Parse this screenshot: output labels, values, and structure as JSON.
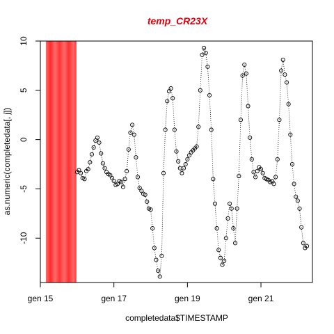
{
  "chart_data": {
    "type": "scatter",
    "title": "temp_CR23X",
    "xlabel": "completedata$TIMESTAMP",
    "ylabel": "as.numeric(completedata[, j])",
    "xlim": [
      15,
      22.4
    ],
    "ylim": [
      -14.5,
      10
    ],
    "x_ticks": [
      {
        "value": 15,
        "label": "gen 15"
      },
      {
        "value": 17,
        "label": "gen 17"
      },
      {
        "value": 19,
        "label": "gen 19"
      },
      {
        "value": 21,
        "label": "gen 21"
      }
    ],
    "y_ticks": [
      {
        "value": 10,
        "label": "10"
      },
      {
        "value": 5,
        "label": "5"
      },
      {
        "value": 0,
        "label": "0"
      },
      {
        "value": -5,
        "label": "-5"
      },
      {
        "value": -10,
        "label": "-10"
      }
    ],
    "highlight_band": {
      "x_from": 15.15,
      "x_to": 15.98,
      "color": "#ff3b3b"
    },
    "title_color": "#e0000a",
    "series": [
      {
        "marker": "open-circle",
        "connector": "dotted-line",
        "points": [
          [
            16.0,
            -3.3
          ],
          [
            16.05,
            -3.1
          ],
          [
            16.1,
            -3.4
          ],
          [
            16.15,
            -3.9
          ],
          [
            16.2,
            -4.0
          ],
          [
            16.25,
            -3.2
          ],
          [
            16.3,
            -3.0
          ],
          [
            16.35,
            -2.3
          ],
          [
            16.4,
            -1.5
          ],
          [
            16.45,
            -0.8
          ],
          [
            16.5,
            -0.1
          ],
          [
            16.55,
            0.2
          ],
          [
            16.6,
            -0.3
          ],
          [
            16.65,
            -1.4
          ],
          [
            16.7,
            -2.4
          ],
          [
            16.75,
            -2.9
          ],
          [
            16.8,
            -3.3
          ],
          [
            16.85,
            -3.5
          ],
          [
            16.9,
            -3.6
          ],
          [
            16.95,
            -3.9
          ],
          [
            17.0,
            -4.2
          ],
          [
            17.05,
            -4.6
          ],
          [
            17.1,
            -4.5
          ],
          [
            17.15,
            -4.2
          ],
          [
            17.2,
            -4.3
          ],
          [
            17.25,
            -4.8
          ],
          [
            17.3,
            -4.0
          ],
          [
            17.35,
            -3.2
          ],
          [
            17.4,
            -1.0
          ],
          [
            17.45,
            0.7
          ],
          [
            17.5,
            1.5
          ],
          [
            17.55,
            0.5
          ],
          [
            17.6,
            -1.8
          ],
          [
            17.65,
            -3.8
          ],
          [
            17.7,
            -4.9
          ],
          [
            17.75,
            -5.2
          ],
          [
            17.8,
            -5.5
          ],
          [
            17.85,
            -5.6
          ],
          [
            17.9,
            -6.3
          ],
          [
            17.95,
            -7.0
          ],
          [
            18.0,
            -7.1
          ],
          [
            18.05,
            -9.0
          ],
          [
            18.1,
            -11.0
          ],
          [
            18.15,
            -12.2
          ],
          [
            18.2,
            -13.3
          ],
          [
            18.25,
            -13.9
          ],
          [
            18.3,
            -11.8
          ],
          [
            18.35,
            -3.4
          ],
          [
            18.4,
            1.0
          ],
          [
            18.45,
            3.9
          ],
          [
            18.5,
            4.9
          ],
          [
            18.55,
            5.2
          ],
          [
            18.6,
            4.2
          ],
          [
            18.65,
            1.0
          ],
          [
            18.7,
            -1.2
          ],
          [
            18.75,
            -2.2
          ],
          [
            18.8,
            -2.9
          ],
          [
            18.85,
            -3.4
          ],
          [
            18.9,
            -2.9
          ],
          [
            18.95,
            -2.5
          ],
          [
            19.0,
            -2.0
          ],
          [
            19.05,
            -1.6
          ],
          [
            19.1,
            -1.3
          ],
          [
            19.15,
            -1.1
          ],
          [
            19.2,
            -0.9
          ],
          [
            19.25,
            -0.7
          ],
          [
            19.3,
            1.3
          ],
          [
            19.35,
            5.0
          ],
          [
            19.4,
            8.6
          ],
          [
            19.45,
            9.3
          ],
          [
            19.5,
            8.8
          ],
          [
            19.55,
            7.4
          ],
          [
            19.6,
            4.5
          ],
          [
            19.65,
            1.0
          ],
          [
            19.7,
            -4.0
          ],
          [
            19.75,
            -6.5
          ],
          [
            19.8,
            -9.0
          ],
          [
            19.85,
            -11.2
          ],
          [
            19.9,
            -12.0
          ],
          [
            19.95,
            -12.7
          ],
          [
            20.0,
            -12.3
          ],
          [
            20.05,
            -10.0
          ],
          [
            20.1,
            -8.0
          ],
          [
            20.15,
            -6.5
          ],
          [
            20.2,
            -7.0
          ],
          [
            20.25,
            -9.0
          ],
          [
            20.3,
            -10.5
          ],
          [
            20.35,
            -7.0
          ],
          [
            20.4,
            -3.7
          ],
          [
            20.45,
            2.0
          ],
          [
            20.5,
            6.5
          ],
          [
            20.55,
            7.6
          ],
          [
            20.6,
            6.7
          ],
          [
            20.65,
            3.4
          ],
          [
            20.7,
            0.2
          ],
          [
            20.75,
            -2.0
          ],
          [
            20.8,
            -3.3
          ],
          [
            20.85,
            -3.8
          ],
          [
            20.9,
            -3.2
          ],
          [
            20.95,
            -2.8
          ],
          [
            21.0,
            -3.0
          ],
          [
            21.05,
            -3.4
          ],
          [
            21.1,
            -3.9
          ],
          [
            21.15,
            -4.0
          ],
          [
            21.2,
            -4.1
          ],
          [
            21.25,
            -4.3
          ],
          [
            21.3,
            -4.2
          ],
          [
            21.35,
            -4.5
          ],
          [
            21.4,
            -3.8
          ],
          [
            21.45,
            -2.0
          ],
          [
            21.5,
            2.0
          ],
          [
            21.55,
            7.0
          ],
          [
            21.6,
            8.1
          ],
          [
            21.65,
            6.6
          ],
          [
            21.7,
            5.8
          ],
          [
            21.75,
            3.6
          ],
          [
            21.8,
            0.5
          ],
          [
            21.85,
            -2.5
          ],
          [
            21.9,
            -4.5
          ],
          [
            21.95,
            -5.8
          ],
          [
            22.0,
            -6.2
          ],
          [
            22.05,
            -7.0
          ],
          [
            22.1,
            -8.9
          ],
          [
            22.15,
            -10.5
          ],
          [
            22.2,
            -11.0
          ],
          [
            22.25,
            -10.8
          ]
        ]
      }
    ]
  }
}
